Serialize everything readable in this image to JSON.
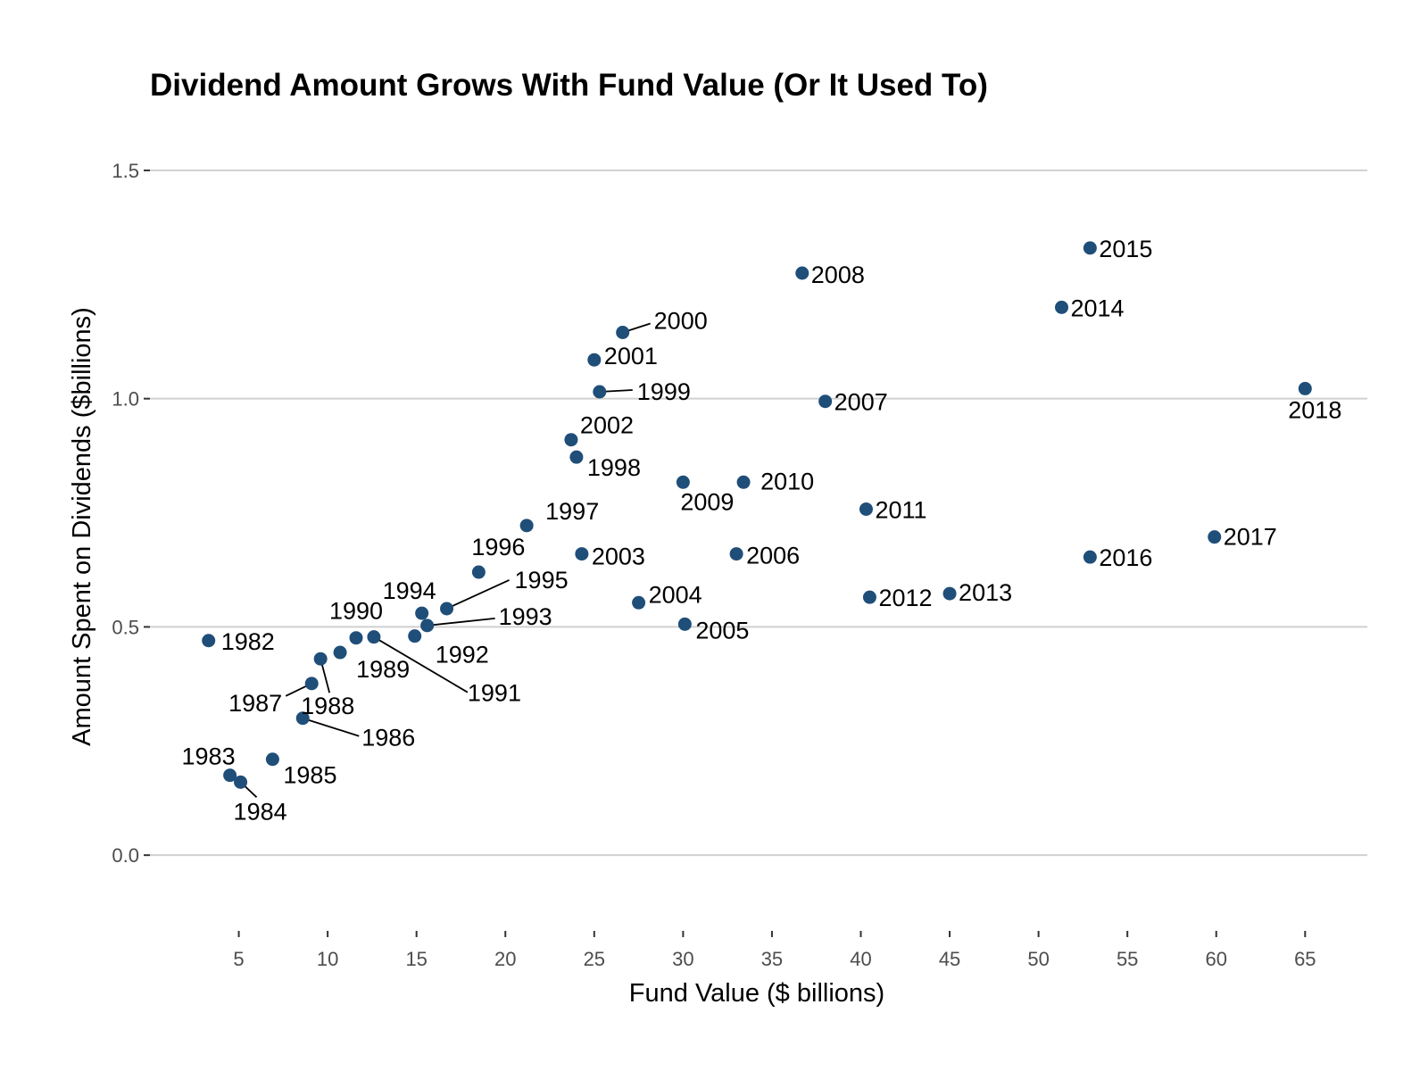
{
  "chart_data": {
    "type": "scatter",
    "title": "Dividend Amount Grows With Fund Value (Or It Used To)",
    "xlabel": "Fund Value ($ billions)",
    "ylabel": "Amount Spent on Dividends ($billions)",
    "xlim": [
      0,
      68.5
    ],
    "ylim": [
      -0.16,
      1.58
    ],
    "xticks": [
      5,
      10,
      15,
      20,
      25,
      30,
      35,
      40,
      45,
      50,
      55,
      60,
      65
    ],
    "xtick_labels": [
      "5",
      "10",
      "15",
      "20",
      "25",
      "30",
      "35",
      "40",
      "45",
      "50",
      "55",
      "60",
      "65"
    ],
    "yticks": [
      0.0,
      0.5,
      1.0,
      1.5
    ],
    "ytick_labels": [
      "0.0",
      "0.5",
      "1.0",
      "1.5"
    ],
    "grid": "horizontal",
    "point_color": "#1f4e79",
    "points": [
      {
        "label": "1982",
        "x": 3.3,
        "y": 0.47
      },
      {
        "label": "1983",
        "x": 4.5,
        "y": 0.175
      },
      {
        "label": "1984",
        "x": 5.1,
        "y": 0.16
      },
      {
        "label": "1985",
        "x": 6.9,
        "y": 0.21
      },
      {
        "label": "1986",
        "x": 8.6,
        "y": 0.3
      },
      {
        "label": "1987",
        "x": 9.1,
        "y": 0.376
      },
      {
        "label": "1988",
        "x": 9.6,
        "y": 0.43
      },
      {
        "label": "1989",
        "x": 10.7,
        "y": 0.444
      },
      {
        "label": "1990",
        "x": 11.6,
        "y": 0.476
      },
      {
        "label": "1991",
        "x": 12.6,
        "y": 0.478
      },
      {
        "label": "1992",
        "x": 14.9,
        "y": 0.48
      },
      {
        "label": "1993",
        "x": 15.6,
        "y": 0.503
      },
      {
        "label": "1994",
        "x": 15.3,
        "y": 0.53
      },
      {
        "label": "1995",
        "x": 16.7,
        "y": 0.54
      },
      {
        "label": "1996",
        "x": 18.5,
        "y": 0.62
      },
      {
        "label": "1997",
        "x": 21.2,
        "y": 0.722
      },
      {
        "label": "1998",
        "x": 24.0,
        "y": 0.872
      },
      {
        "label": "1999",
        "x": 25.3,
        "y": 1.015
      },
      {
        "label": "2000",
        "x": 26.6,
        "y": 1.145
      },
      {
        "label": "2001",
        "x": 25.0,
        "y": 1.085
      },
      {
        "label": "2002",
        "x": 23.7,
        "y": 0.91
      },
      {
        "label": "2003",
        "x": 24.3,
        "y": 0.66
      },
      {
        "label": "2004",
        "x": 27.5,
        "y": 0.553
      },
      {
        "label": "2005",
        "x": 30.1,
        "y": 0.506
      },
      {
        "label": "2006",
        "x": 33.0,
        "y": 0.66
      },
      {
        "label": "2007",
        "x": 38.0,
        "y": 0.994
      },
      {
        "label": "2008",
        "x": 36.7,
        "y": 1.275
      },
      {
        "label": "2009",
        "x": 30.0,
        "y": 0.817
      },
      {
        "label": "2010",
        "x": 33.4,
        "y": 0.817
      },
      {
        "label": "2011",
        "x": 40.3,
        "y": 0.758
      },
      {
        "label": "2012",
        "x": 40.5,
        "y": 0.565
      },
      {
        "label": "2013",
        "x": 45.0,
        "y": 0.573
      },
      {
        "label": "2014",
        "x": 51.3,
        "y": 1.2
      },
      {
        "label": "2015",
        "x": 52.9,
        "y": 1.33
      },
      {
        "label": "2016",
        "x": 52.9,
        "y": 0.653
      },
      {
        "label": "2017",
        "x": 59.9,
        "y": 0.697
      },
      {
        "label": "2018",
        "x": 65.0,
        "y": 1.022
      }
    ]
  }
}
